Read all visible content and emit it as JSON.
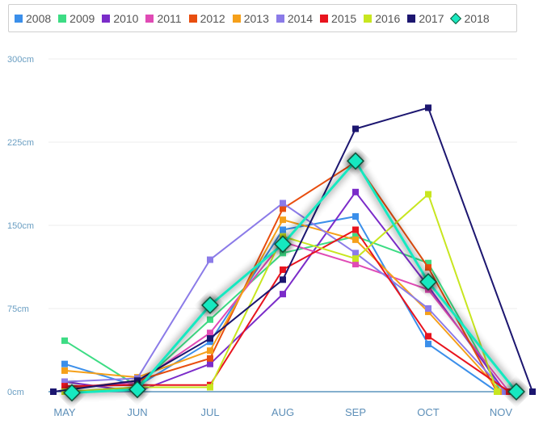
{
  "chart_data": {
    "type": "line",
    "title": "",
    "xlabel": "",
    "ylabel": "",
    "categories": [
      "MAY",
      "JUN",
      "JUL",
      "AUG",
      "SEP",
      "OCT",
      "NOV"
    ],
    "y_ticks": [
      "0cm",
      "75cm",
      "150cm",
      "225cm",
      "300cm"
    ],
    "ylim": [
      0,
      300
    ],
    "grid": "horizontal",
    "legend_position": "top",
    "series": [
      {
        "name": "2008",
        "color": "#3b8fea",
        "values": [
          25,
          5,
          45,
          146,
          158,
          43,
          0
        ]
      },
      {
        "name": "2009",
        "color": "#3ddc84",
        "values": [
          46,
          5,
          65,
          125,
          140,
          116,
          0
        ]
      },
      {
        "name": "2010",
        "color": "#7b2cc9",
        "values": [
          9,
          0,
          25,
          88,
          180,
          95,
          0
        ]
      },
      {
        "name": "2011",
        "color": "#e04bb5",
        "values": [
          4,
          8,
          53,
          135,
          115,
          92,
          0
        ]
      },
      {
        "name": "2012",
        "color": "#e84e0f",
        "values": [
          2,
          10,
          30,
          165,
          207,
          112,
          0
        ]
      },
      {
        "name": "2013",
        "color": "#f5a01a",
        "values": [
          19,
          13,
          37,
          155,
          137,
          72,
          0
        ]
      },
      {
        "name": "2014",
        "color": "#8b7be8",
        "values": [
          9,
          12,
          119,
          170,
          125,
          75,
          0
        ]
      },
      {
        "name": "2015",
        "color": "#e8141e",
        "values": [
          5,
          6,
          6,
          110,
          146,
          50,
          0
        ]
      },
      {
        "name": "2016",
        "color": "#c8e620",
        "values": [
          0,
          4,
          4,
          140,
          120,
          178,
          0
        ]
      },
      {
        "name": "2017",
        "color": "#1c1670",
        "values": [
          0,
          10,
          48,
          101,
          237,
          256,
          0
        ]
      },
      {
        "name": "2018",
        "color": "#19e8c0",
        "values": [
          -1,
          2,
          78,
          133,
          208,
          99,
          0
        ],
        "highlighted": true
      }
    ]
  }
}
